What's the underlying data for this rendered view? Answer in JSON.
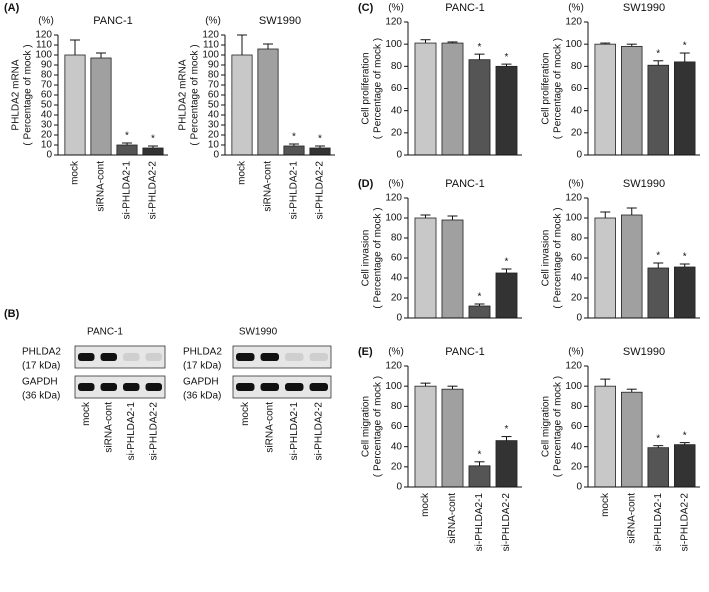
{
  "panel_labels": {
    "A": "(A)",
    "B": "(B)",
    "C": "(C)",
    "D": "(D)",
    "E": "(E)"
  },
  "blot": [
    {
      "title": "PANC-1",
      "rows": [
        {
          "name": "PHLDA2",
          "size": "(17 kDa)"
        },
        {
          "name": "GAPDH",
          "size": "(36 kDa)"
        }
      ],
      "lanes": [
        "mock",
        "siRNA-cont",
        "si-PHLDA2-1",
        "si-PHLDA2-2"
      ]
    },
    {
      "title": "SW1990",
      "rows": [
        {
          "name": "PHLDA2",
          "size": "(17 kDa)"
        },
        {
          "name": "GAPDH",
          "size": "(36 kDa)"
        }
      ],
      "lanes": [
        "mock",
        "siRNA-cont",
        "si-PHLDA2-1",
        "si-PHLDA2-2"
      ]
    }
  ],
  "chart_data": [
    {
      "type": "bar",
      "title": "PANC-1",
      "unit": "(%)",
      "ylabel": [
        "PHLDA2 mRNA",
        "( Percentage of mock )"
      ],
      "categories": [
        "mock",
        "siRNA-cont",
        "si-PHLDA2-1",
        "si-PHLDA2-2"
      ],
      "values": [
        100,
        97,
        10,
        7
      ],
      "errors": [
        15,
        5,
        2,
        2
      ],
      "significance": [
        null,
        null,
        "*",
        "*"
      ],
      "colors": [
        "#c8c8c8",
        "#a0a0a0",
        "#555555",
        "#333333"
      ],
      "ylim": [
        0,
        120
      ],
      "yticks": [
        0,
        10,
        20,
        30,
        40,
        50,
        60,
        70,
        80,
        90,
        100,
        110,
        120
      ]
    },
    {
      "type": "bar",
      "title": "SW1990",
      "unit": "(%)",
      "ylabel": [
        "PHLDA2 mRNA",
        "( Percentage of mock )"
      ],
      "categories": [
        "mock",
        "siRNA-cont",
        "si-PHLDA2-1",
        "si-PHLDA2-2"
      ],
      "values": [
        100,
        106,
        9,
        7
      ],
      "errors": [
        20,
        5,
        2,
        2
      ],
      "significance": [
        null,
        null,
        "*",
        "*"
      ],
      "colors": [
        "#c8c8c8",
        "#a0a0a0",
        "#555555",
        "#333333"
      ],
      "ylim": [
        0,
        120
      ],
      "yticks": [
        0,
        10,
        20,
        30,
        40,
        50,
        60,
        70,
        80,
        90,
        100,
        110,
        120
      ]
    },
    {
      "type": "bar",
      "title": "PANC-1",
      "unit": "(%)",
      "ylabel": [
        "Cell proliferation",
        "( Percentage of mock )"
      ],
      "values": [
        101,
        101,
        86,
        80
      ],
      "errors": [
        3,
        1,
        5,
        2
      ],
      "significance": [
        null,
        null,
        "*",
        "*"
      ],
      "colors": [
        "#c8c8c8",
        "#a0a0a0",
        "#555555",
        "#333333"
      ],
      "ylim": [
        0,
        120
      ],
      "yticks": [
        0,
        20,
        40,
        60,
        80,
        100,
        120
      ]
    },
    {
      "type": "bar",
      "title": "SW1990",
      "unit": "(%)",
      "ylabel": [
        "Cell proliferation",
        "( Percentage of mock )"
      ],
      "values": [
        100,
        98,
        81,
        84
      ],
      "errors": [
        1,
        2,
        4,
        8
      ],
      "significance": [
        null,
        null,
        "*",
        "*"
      ],
      "colors": [
        "#c8c8c8",
        "#a0a0a0",
        "#555555",
        "#333333"
      ],
      "ylim": [
        0,
        120
      ],
      "yticks": [
        0,
        20,
        40,
        60,
        80,
        100,
        120
      ]
    },
    {
      "type": "bar",
      "title": "PANC-1",
      "unit": "(%)",
      "ylabel": [
        "Cell invasion",
        "( Percentage of mock )"
      ],
      "values": [
        100,
        98,
        12,
        45
      ],
      "errors": [
        3,
        4,
        2,
        4
      ],
      "significance": [
        null,
        null,
        "*",
        "*"
      ],
      "colors": [
        "#c8c8c8",
        "#a0a0a0",
        "#555555",
        "#333333"
      ],
      "ylim": [
        0,
        120
      ],
      "yticks": [
        0,
        20,
        40,
        60,
        80,
        100,
        120
      ]
    },
    {
      "type": "bar",
      "title": "SW1990",
      "unit": "(%)",
      "ylabel": [
        "Cell invasion",
        "( Percentage of mock )"
      ],
      "values": [
        100,
        103,
        50,
        51
      ],
      "errors": [
        6,
        7,
        5,
        3
      ],
      "significance": [
        null,
        null,
        "*",
        "*"
      ],
      "colors": [
        "#c8c8c8",
        "#a0a0a0",
        "#555555",
        "#333333"
      ],
      "ylim": [
        0,
        120
      ],
      "yticks": [
        0,
        20,
        40,
        60,
        80,
        100,
        120
      ]
    },
    {
      "type": "bar",
      "title": "PANC-1",
      "unit": "(%)",
      "ylabel": [
        "Cell migration",
        "( Percentage of mock )"
      ],
      "categories": [
        "mock",
        "siRNA-cont",
        "si-PHLDA2-1",
        "si-PHLDA2-2"
      ],
      "values": [
        100,
        97,
        21,
        46
      ],
      "errors": [
        3,
        3,
        4,
        4
      ],
      "significance": [
        null,
        null,
        "*",
        "*"
      ],
      "colors": [
        "#c8c8c8",
        "#a0a0a0",
        "#555555",
        "#333333"
      ],
      "ylim": [
        0,
        120
      ],
      "yticks": [
        0,
        20,
        40,
        60,
        80,
        100,
        120
      ]
    },
    {
      "type": "bar",
      "title": "SW1990",
      "unit": "(%)",
      "ylabel": [
        "Cell migration",
        "( Percentage of mock )"
      ],
      "categories": [
        "mock",
        "siRNA-cont",
        "si-PHLDA2-1",
        "si-PHLDA2-2"
      ],
      "values": [
        100,
        94,
        39,
        42
      ],
      "errors": [
        7,
        3,
        2,
        2
      ],
      "significance": [
        null,
        null,
        "*",
        "*"
      ],
      "colors": [
        "#c8c8c8",
        "#a0a0a0",
        "#555555",
        "#333333"
      ],
      "ylim": [
        0,
        120
      ],
      "yticks": [
        0,
        20,
        40,
        60,
        80,
        100,
        120
      ]
    }
  ]
}
